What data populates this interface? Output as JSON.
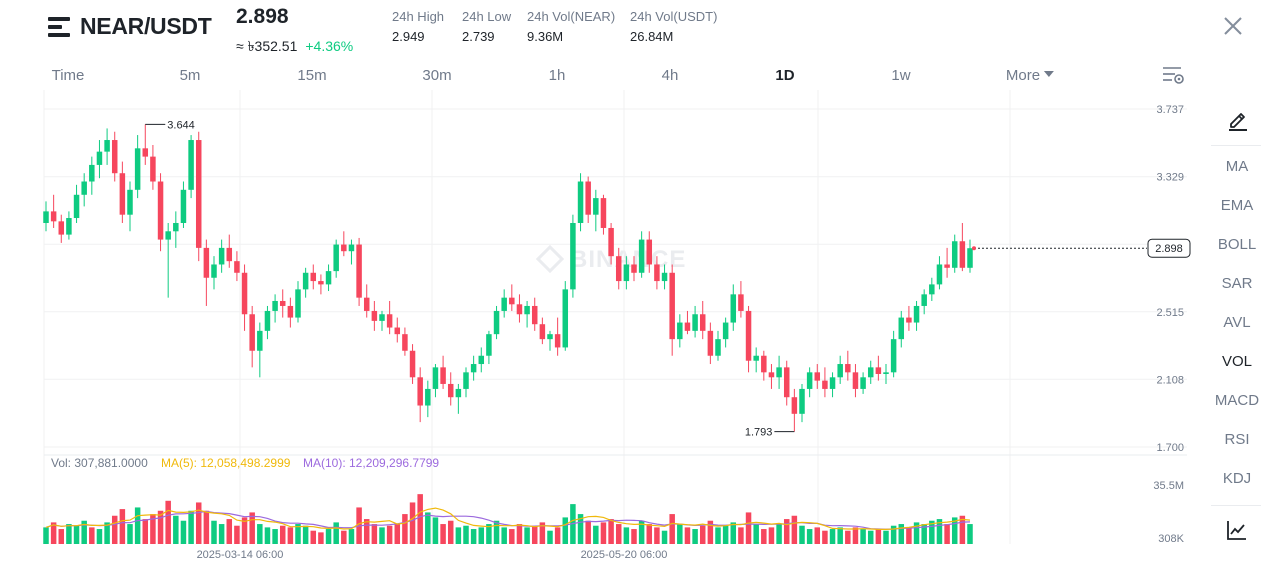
{
  "header": {
    "pair": "NEAR/USDT",
    "price": "2.898",
    "price_local": "≈ ৳352.51",
    "change_pct": "+4.36%",
    "stats": [
      {
        "label": "24h High",
        "value": "2.949"
      },
      {
        "label": "24h Low",
        "value": "2.739"
      },
      {
        "label": "24h Vol(NEAR)",
        "value": "9.36M"
      },
      {
        "label": "24h Vol(USDT)",
        "value": "26.84M"
      }
    ]
  },
  "intervals": [
    {
      "label": "Time",
      "active": false
    },
    {
      "label": "5m",
      "active": false
    },
    {
      "label": "15m",
      "active": false
    },
    {
      "label": "30m",
      "active": false
    },
    {
      "label": "1h",
      "active": false
    },
    {
      "label": "4h",
      "active": false
    },
    {
      "label": "1D",
      "active": true
    },
    {
      "label": "1w",
      "active": false
    },
    {
      "label": "More",
      "active": false
    }
  ],
  "indicators": [
    {
      "label": "MA",
      "active": false
    },
    {
      "label": "EMA",
      "active": false
    },
    {
      "label": "BOLL",
      "active": false
    },
    {
      "label": "SAR",
      "active": false
    },
    {
      "label": "AVL",
      "active": false
    },
    {
      "label": "VOL",
      "active": true
    },
    {
      "label": "MACD",
      "active": false
    },
    {
      "label": "RSI",
      "active": false
    },
    {
      "label": "KDJ",
      "active": false
    }
  ],
  "icons": {
    "menu": "menu-icon",
    "close": "close-icon",
    "settings": "chart-settings-icon",
    "draw": "pen-icon",
    "chart": "chart-line-icon"
  },
  "colors": {
    "up": "#0ecb81",
    "down": "#f6465d",
    "ma5": "#f0b90b",
    "ma10": "#9c27b0",
    "text": "#1e2329",
    "muted": "#707a8a"
  },
  "watermark": "BINANCE",
  "chart_data": {
    "type": "candlestick",
    "price_axis_ticks": [
      "3.737",
      "3.329",
      "2.922",
      "2.515",
      "2.108",
      "1.700"
    ],
    "ylim": [
      1.7,
      3.737
    ],
    "last_price_label": "2.898",
    "high_marker": "3.644",
    "low_marker": "1.793",
    "date_labels": [
      "2025-03-14 06:00",
      "2025-05-20 06:00"
    ],
    "volume": {
      "legend_vol": "Vol: 307,881.0000",
      "legend_ma5": "MA(5): 12,058,498.2999",
      "legend_ma10": "MA(10): 12,209,296.7799",
      "axis_ticks": [
        "35.5M",
        "308K"
      ],
      "ylim": [
        0.308,
        35.5
      ]
    },
    "candles": [
      [
        3.05,
        3.18,
        3.0,
        3.12
      ],
      [
        3.12,
        3.22,
        3.02,
        3.06
      ],
      [
        3.06,
        3.1,
        2.93,
        2.98
      ],
      [
        2.98,
        3.12,
        2.95,
        3.08
      ],
      [
        3.08,
        3.28,
        3.05,
        3.22
      ],
      [
        3.22,
        3.35,
        3.15,
        3.3
      ],
      [
        3.3,
        3.45,
        3.22,
        3.4
      ],
      [
        3.4,
        3.55,
        3.32,
        3.48
      ],
      [
        3.48,
        3.62,
        3.4,
        3.55
      ],
      [
        3.55,
        3.6,
        3.3,
        3.35
      ],
      [
        3.35,
        3.42,
        3.05,
        3.1
      ],
      [
        3.1,
        3.3,
        3.0,
        3.25
      ],
      [
        3.25,
        3.58,
        3.2,
        3.5
      ],
      [
        3.5,
        3.644,
        3.4,
        3.45
      ],
      [
        3.45,
        3.52,
        3.25,
        3.3
      ],
      [
        3.3,
        3.35,
        2.88,
        2.95
      ],
      [
        2.95,
        3.05,
        2.6,
        3.0
      ],
      [
        3.0,
        3.12,
        2.9,
        3.05
      ],
      [
        3.05,
        3.3,
        3.02,
        3.25
      ],
      [
        3.25,
        3.58,
        3.2,
        3.55
      ],
      [
        3.55,
        3.6,
        2.82,
        2.9
      ],
      [
        2.9,
        2.95,
        2.55,
        2.72
      ],
      [
        2.72,
        2.85,
        2.65,
        2.8
      ],
      [
        2.8,
        2.95,
        2.75,
        2.9
      ],
      [
        2.9,
        2.98,
        2.78,
        2.82
      ],
      [
        2.82,
        2.88,
        2.7,
        2.75
      ],
      [
        2.75,
        2.8,
        2.4,
        2.5
      ],
      [
        2.5,
        2.55,
        2.18,
        2.28
      ],
      [
        2.28,
        2.45,
        2.12,
        2.4
      ],
      [
        2.4,
        2.55,
        2.35,
        2.52
      ],
      [
        2.52,
        2.62,
        2.45,
        2.58
      ],
      [
        2.58,
        2.65,
        2.48,
        2.55
      ],
      [
        2.55,
        2.6,
        2.42,
        2.48
      ],
      [
        2.48,
        2.7,
        2.45,
        2.65
      ],
      [
        2.65,
        2.78,
        2.6,
        2.75
      ],
      [
        2.75,
        2.8,
        2.65,
        2.7
      ],
      [
        2.7,
        2.74,
        2.62,
        2.68
      ],
      [
        2.68,
        2.8,
        2.64,
        2.76
      ],
      [
        2.76,
        2.95,
        2.72,
        2.92
      ],
      [
        2.92,
        3.0,
        2.85,
        2.88
      ],
      [
        2.88,
        2.95,
        2.8,
        2.92
      ],
      [
        2.92,
        2.96,
        2.55,
        2.6
      ],
      [
        2.6,
        2.68,
        2.48,
        2.52
      ],
      [
        2.52,
        2.58,
        2.4,
        2.46
      ],
      [
        2.46,
        2.52,
        2.4,
        2.5
      ],
      [
        2.5,
        2.58,
        2.38,
        2.42
      ],
      [
        2.42,
        2.48,
        2.33,
        2.38
      ],
      [
        2.38,
        2.42,
        2.25,
        2.28
      ],
      [
        2.28,
        2.32,
        2.08,
        2.12
      ],
      [
        2.12,
        2.18,
        1.85,
        1.95
      ],
      [
        1.95,
        2.1,
        1.88,
        2.05
      ],
      [
        2.05,
        2.2,
        2.0,
        2.18
      ],
      [
        2.18,
        2.25,
        2.05,
        2.08
      ],
      [
        2.08,
        2.15,
        1.95,
        2.0
      ],
      [
        2.0,
        2.08,
        1.9,
        2.05
      ],
      [
        2.05,
        2.18,
        2.0,
        2.15
      ],
      [
        2.15,
        2.25,
        2.1,
        2.2
      ],
      [
        2.2,
        2.3,
        2.15,
        2.25
      ],
      [
        2.25,
        2.4,
        2.2,
        2.38
      ],
      [
        2.38,
        2.55,
        2.35,
        2.52
      ],
      [
        2.52,
        2.65,
        2.48,
        2.6
      ],
      [
        2.6,
        2.68,
        2.52,
        2.56
      ],
      [
        2.56,
        2.62,
        2.45,
        2.5
      ],
      [
        2.5,
        2.58,
        2.42,
        2.55
      ],
      [
        2.55,
        2.6,
        2.4,
        2.44
      ],
      [
        2.44,
        2.48,
        2.32,
        2.35
      ],
      [
        2.35,
        2.4,
        2.28,
        2.38
      ],
      [
        2.38,
        2.48,
        2.25,
        2.3
      ],
      [
        2.3,
        2.7,
        2.28,
        2.65
      ],
      [
        2.65,
        3.1,
        2.6,
        3.05
      ],
      [
        3.05,
        3.35,
        3.0,
        3.3
      ],
      [
        3.3,
        3.33,
        3.05,
        3.1
      ],
      [
        3.1,
        3.25,
        3.0,
        3.2
      ],
      [
        3.2,
        3.22,
        2.98,
        3.02
      ],
      [
        3.02,
        3.05,
        2.8,
        2.85
      ],
      [
        2.85,
        2.9,
        2.65,
        2.7
      ],
      [
        2.7,
        2.85,
        2.65,
        2.8
      ],
      [
        2.8,
        2.85,
        2.7,
        2.75
      ],
      [
        2.75,
        3.0,
        2.72,
        2.95
      ],
      [
        2.95,
        3.0,
        2.75,
        2.8
      ],
      [
        2.8,
        2.85,
        2.65,
        2.7
      ],
      [
        2.7,
        2.8,
        2.65,
        2.75
      ],
      [
        2.75,
        2.8,
        2.25,
        2.35
      ],
      [
        2.35,
        2.5,
        2.3,
        2.45
      ],
      [
        2.45,
        2.52,
        2.38,
        2.4
      ],
      [
        2.4,
        2.55,
        2.36,
        2.5
      ],
      [
        2.5,
        2.58,
        2.35,
        2.4
      ],
      [
        2.4,
        2.45,
        2.2,
        2.25
      ],
      [
        2.25,
        2.4,
        2.22,
        2.35
      ],
      [
        2.35,
        2.48,
        2.3,
        2.45
      ],
      [
        2.45,
        2.68,
        2.4,
        2.62
      ],
      [
        2.62,
        2.7,
        2.48,
        2.52
      ],
      [
        2.52,
        2.55,
        2.15,
        2.22
      ],
      [
        2.22,
        2.3,
        2.15,
        2.25
      ],
      [
        2.25,
        2.28,
        2.1,
        2.15
      ],
      [
        2.15,
        2.2,
        2.05,
        2.12
      ],
      [
        2.12,
        2.25,
        2.05,
        2.18
      ],
      [
        2.18,
        2.22,
        1.95,
        2.0
      ],
      [
        2.0,
        2.05,
        1.793,
        1.9
      ],
      [
        1.9,
        2.08,
        1.85,
        2.05
      ],
      [
        2.05,
        2.18,
        2.0,
        2.15
      ],
      [
        2.15,
        2.2,
        2.05,
        2.1
      ],
      [
        2.1,
        2.18,
        2.0,
        2.05
      ],
      [
        2.05,
        2.15,
        2.0,
        2.12
      ],
      [
        2.12,
        2.25,
        2.08,
        2.2
      ],
      [
        2.2,
        2.28,
        2.1,
        2.15
      ],
      [
        2.15,
        2.2,
        2.0,
        2.05
      ],
      [
        2.05,
        2.15,
        2.02,
        2.12
      ],
      [
        2.12,
        2.22,
        2.08,
        2.18
      ],
      [
        2.18,
        2.25,
        2.1,
        2.14
      ],
      [
        2.14,
        2.2,
        2.08,
        2.15
      ],
      [
        2.15,
        2.4,
        2.12,
        2.35
      ],
      [
        2.35,
        2.52,
        2.3,
        2.48
      ],
      [
        2.48,
        2.55,
        2.4,
        2.45
      ],
      [
        2.45,
        2.58,
        2.4,
        2.55
      ],
      [
        2.55,
        2.65,
        2.5,
        2.62
      ],
      [
        2.62,
        2.72,
        2.58,
        2.68
      ],
      [
        2.68,
        2.85,
        2.65,
        2.8
      ],
      [
        2.8,
        2.9,
        2.72,
        2.78
      ],
      [
        2.78,
        2.98,
        2.75,
        2.94
      ],
      [
        2.94,
        3.05,
        2.76,
        2.78
      ],
      [
        2.78,
        2.95,
        2.75,
        2.898
      ]
    ],
    "volumes": [
      [
        10,
        0
      ],
      [
        13,
        1
      ],
      [
        9,
        1
      ],
      [
        12,
        0
      ],
      [
        11,
        0
      ],
      [
        14,
        0
      ],
      [
        10,
        1
      ],
      [
        9,
        0
      ],
      [
        13,
        0
      ],
      [
        17,
        1
      ],
      [
        21,
        1
      ],
      [
        12,
        0
      ],
      [
        22,
        0
      ],
      [
        15,
        1
      ],
      [
        18,
        1
      ],
      [
        20,
        1
      ],
      [
        26,
        1
      ],
      [
        17,
        0
      ],
      [
        14,
        0
      ],
      [
        20,
        0
      ],
      [
        25,
        1
      ],
      [
        20,
        1
      ],
      [
        14,
        0
      ],
      [
        12,
        0
      ],
      [
        15,
        1
      ],
      [
        11,
        1
      ],
      [
        16,
        1
      ],
      [
        19,
        1
      ],
      [
        12,
        0
      ],
      [
        10,
        0
      ],
      [
        9,
        0
      ],
      [
        11,
        1
      ],
      [
        10,
        1
      ],
      [
        12,
        0
      ],
      [
        11,
        0
      ],
      [
        8,
        1
      ],
      [
        7,
        1
      ],
      [
        9,
        0
      ],
      [
        13,
        0
      ],
      [
        8,
        1
      ],
      [
        9,
        0
      ],
      [
        22,
        1
      ],
      [
        15,
        1
      ],
      [
        12,
        1
      ],
      [
        10,
        0
      ],
      [
        11,
        1
      ],
      [
        12,
        1
      ],
      [
        18,
        1
      ],
      [
        25,
        1
      ],
      [
        30,
        1
      ],
      [
        19,
        0
      ],
      [
        16,
        0
      ],
      [
        12,
        1
      ],
      [
        14,
        1
      ],
      [
        10,
        0
      ],
      [
        11,
        0
      ],
      [
        9,
        0
      ],
      [
        10,
        0
      ],
      [
        12,
        0
      ],
      [
        14,
        0
      ],
      [
        10,
        0
      ],
      [
        9,
        1
      ],
      [
        12,
        1
      ],
      [
        10,
        0
      ],
      [
        11,
        1
      ],
      [
        13,
        1
      ],
      [
        8,
        0
      ],
      [
        10,
        1
      ],
      [
        16,
        0
      ],
      [
        24,
        0
      ],
      [
        18,
        0
      ],
      [
        14,
        1
      ],
      [
        11,
        0
      ],
      [
        13,
        1
      ],
      [
        15,
        1
      ],
      [
        12,
        1
      ],
      [
        10,
        0
      ],
      [
        9,
        1
      ],
      [
        14,
        0
      ],
      [
        12,
        1
      ],
      [
        10,
        1
      ],
      [
        8,
        0
      ],
      [
        18,
        1
      ],
      [
        12,
        0
      ],
      [
        10,
        1
      ],
      [
        9,
        0
      ],
      [
        11,
        1
      ],
      [
        14,
        1
      ],
      [
        10,
        0
      ],
      [
        11,
        0
      ],
      [
        13,
        0
      ],
      [
        10,
        1
      ],
      [
        19,
        1
      ],
      [
        12,
        0
      ],
      [
        9,
        1
      ],
      [
        10,
        1
      ],
      [
        12,
        0
      ],
      [
        15,
        1
      ],
      [
        17,
        1
      ],
      [
        11,
        0
      ],
      [
        9,
        0
      ],
      [
        10,
        1
      ],
      [
        8,
        1
      ],
      [
        9,
        0
      ],
      [
        10,
        0
      ],
      [
        8,
        1
      ],
      [
        10,
        1
      ],
      [
        9,
        0
      ],
      [
        8,
        0
      ],
      [
        9,
        1
      ],
      [
        8,
        0
      ],
      [
        11,
        0
      ],
      [
        12,
        0
      ],
      [
        10,
        1
      ],
      [
        13,
        0
      ],
      [
        12,
        0
      ],
      [
        14,
        0
      ],
      [
        15,
        0
      ],
      [
        12,
        1
      ],
      [
        16,
        0
      ],
      [
        17,
        1
      ],
      [
        12,
        0
      ]
    ]
  }
}
